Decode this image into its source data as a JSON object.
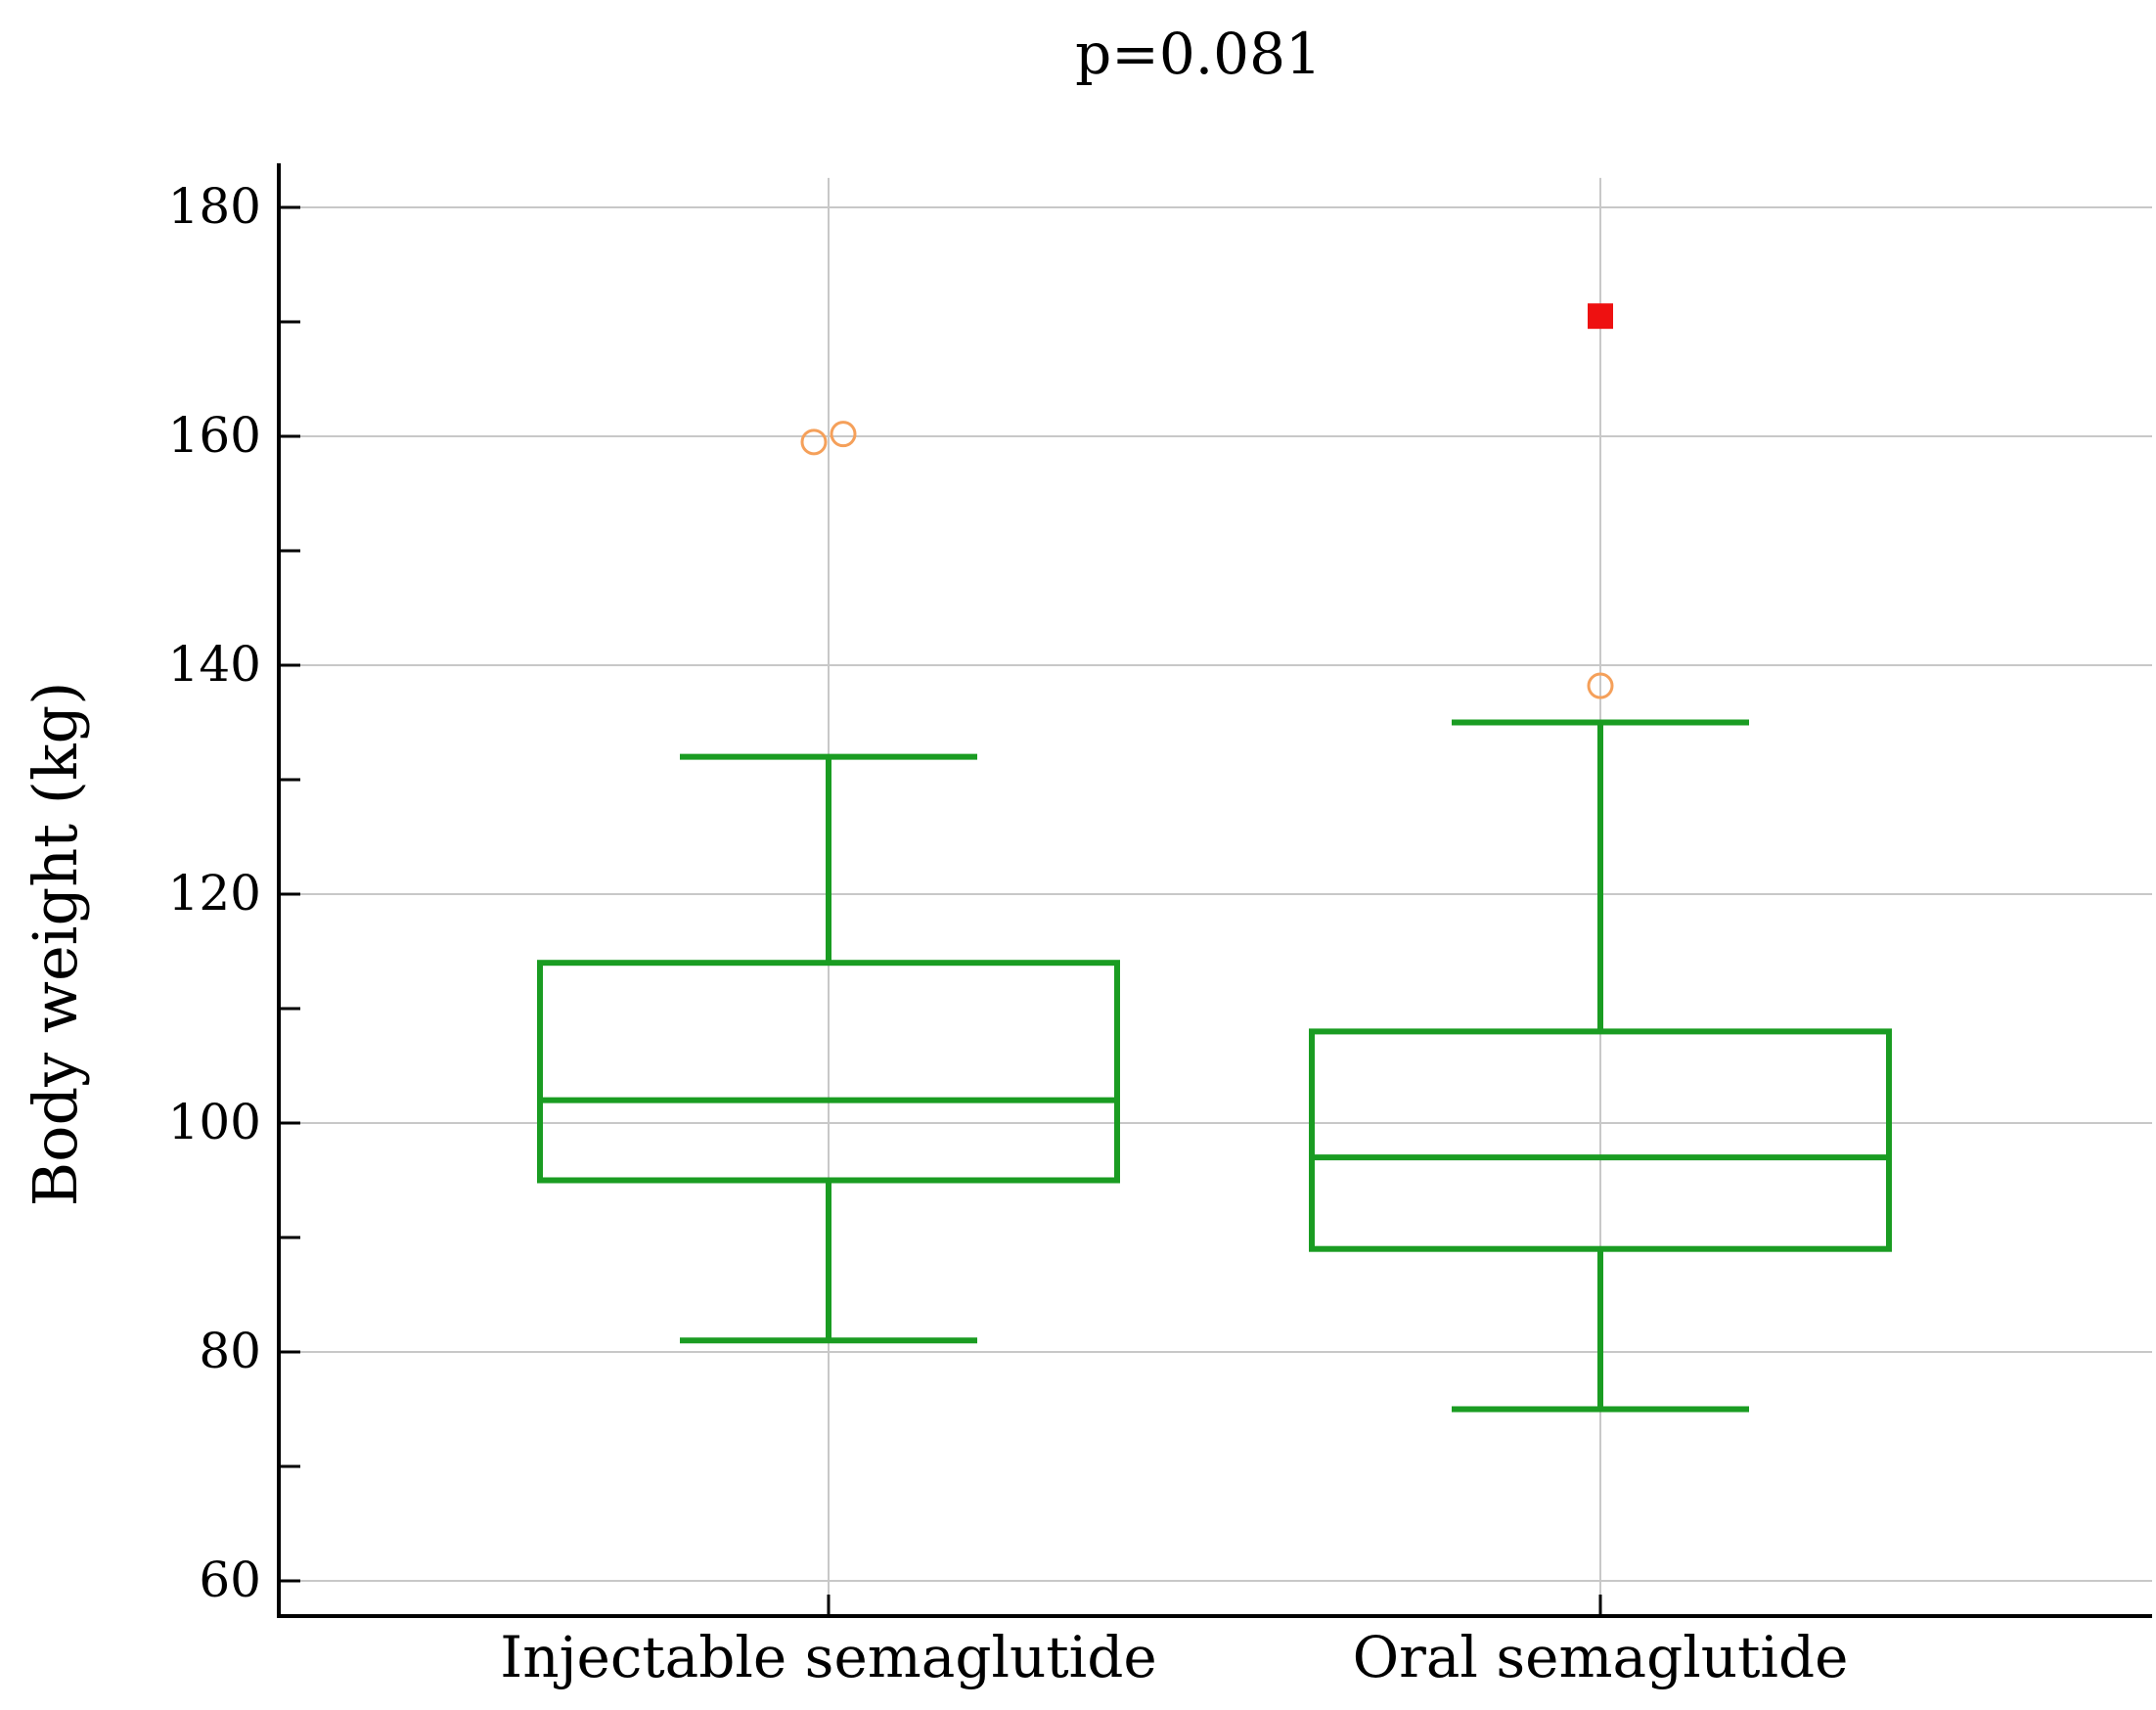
{
  "chart_data": {
    "type": "boxplot",
    "title": "p=0.081",
    "xlabel": "",
    "ylabel": "Body weight (kg)",
    "ylim": [
      57,
      183
    ],
    "yticks": [
      60,
      80,
      100,
      120,
      140,
      160,
      180
    ],
    "ytick_labels": [
      "60",
      "80",
      "100",
      "120",
      "140",
      "160",
      "180"
    ],
    "grid": true,
    "colors": {
      "box": "#1a9c22",
      "outlier": "#f5a05a",
      "far_outlier": "#ee1111",
      "grid": "#c8c8c8",
      "axis": "#000000"
    },
    "categories": [
      "Injectable semaglutide",
      "Oral semaglutide"
    ],
    "boxes": [
      {
        "name": "Injectable semaglutide",
        "whisker_low": 81,
        "q1": 95,
        "median": 102,
        "q3": 114,
        "whisker_high": 132,
        "outliers": [
          159.5,
          160.2
        ],
        "far_outliers": []
      },
      {
        "name": "Oral semaglutide",
        "whisker_low": 75,
        "q1": 89,
        "median": 97,
        "q3": 108,
        "whisker_high": 135,
        "outliers": [
          138.2
        ],
        "far_outliers": [
          170.5
        ]
      }
    ]
  }
}
